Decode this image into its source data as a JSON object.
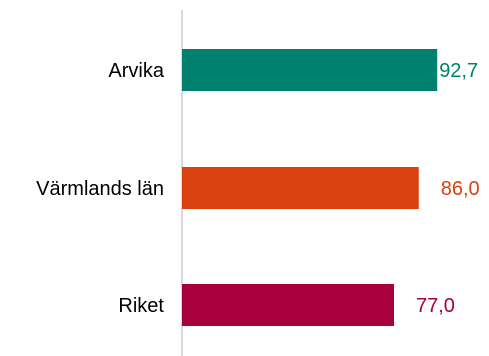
{
  "chart_data": {
    "type": "bar",
    "orientation": "horizontal",
    "categories": [
      "Arvika",
      "Värmlands län",
      "Riket"
    ],
    "values": [
      92.7,
      86.0,
      77.0
    ],
    "value_labels": [
      "92,7",
      "86,0",
      "77,0"
    ],
    "colors": [
      "#00806f",
      "#d9410e",
      "#a8003c"
    ],
    "title": "",
    "xlabel": "",
    "ylabel": "",
    "xlim": [
      0,
      100
    ],
    "grid": false,
    "legend": "none"
  }
}
